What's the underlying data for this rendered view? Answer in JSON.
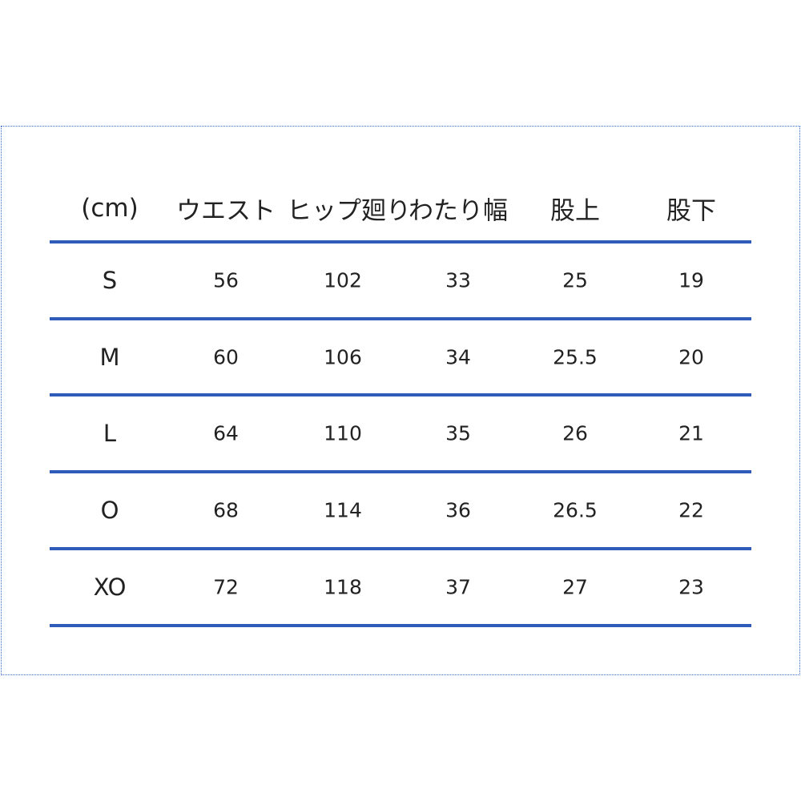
{
  "table": {
    "header": [
      "(cm)",
      "ウエスト",
      "ヒップ廻り",
      "わたり幅",
      "股上",
      "股下"
    ],
    "rows": [
      [
        "S",
        56,
        102,
        33,
        25,
        19
      ],
      [
        "M",
        60,
        106,
        34,
        25.5,
        20
      ],
      [
        "L",
        64,
        110,
        35,
        26,
        21
      ],
      [
        "O",
        68,
        114,
        36,
        26.5,
        22
      ],
      [
        "XO",
        72,
        118,
        37,
        27,
        23
      ]
    ]
  }
}
